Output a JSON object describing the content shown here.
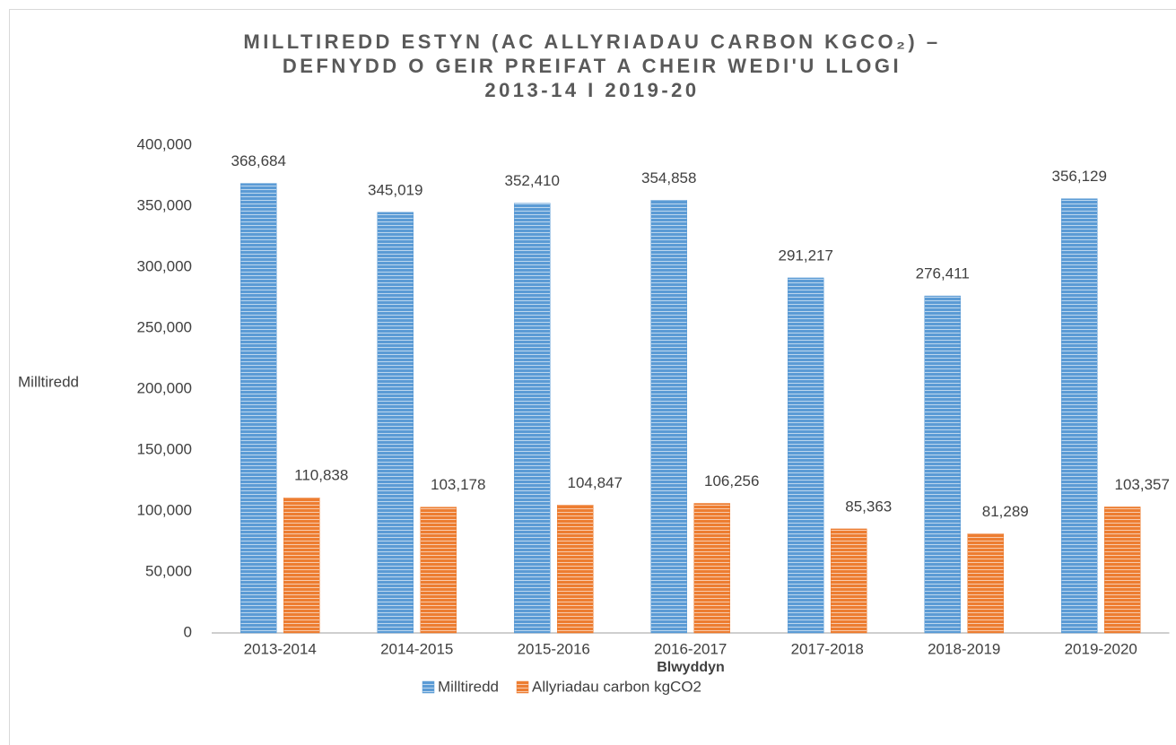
{
  "chart_data": {
    "type": "bar",
    "title": [
      "MILLTIREDD ESTYN (AC ALLYRIADAU CARBON KGCO₂) –",
      "DEFNYDD O GEIR PREIFAT A CHEIR WEDI'U LLOGI",
      "2013-14 I 2019-20"
    ],
    "y_label": "Milltiredd",
    "x_label": "Blwyddyn",
    "categories": [
      "2013-2014",
      "2014-2015",
      "2015-2016",
      "2016-2017",
      "2017-2018",
      "2018-2019",
      "2019-2020"
    ],
    "series": [
      {
        "name": "Milltiredd",
        "color": "#5b9bd5",
        "values": [
          368684,
          345019,
          352410,
          354858,
          291217,
          276411,
          356129
        ],
        "value_labels": [
          "368,684",
          "345,019",
          "352,410",
          "354,858",
          "291,217",
          "276,411",
          "356,129"
        ]
      },
      {
        "name": "Allyriadau carbon kgCO2",
        "color": "#ed7d31",
        "values": [
          110838,
          103178,
          104847,
          106256,
          85363,
          81289,
          103357
        ],
        "value_labels": [
          "110,838",
          "103,178",
          "104,847",
          "106,256",
          "85,363",
          "81,289",
          "103,357"
        ]
      }
    ],
    "ylim": [
      0,
      400000
    ],
    "yticks": [
      0,
      {
        "value": 50000,
        "label": "50,000"
      },
      {
        "value": 100000,
        "label": "100,000"
      },
      {
        "value": 150000,
        "label": "150,000"
      },
      {
        "value": 200000,
        "label": "200,000"
      },
      {
        "value": 250000,
        "label": "250,000"
      },
      {
        "value": 300000,
        "label": "300,000"
      },
      {
        "value": 350000,
        "label": "350,000"
      },
      {
        "value": 400000,
        "label": "400,000"
      }
    ],
    "grid": false,
    "legend": "bottom"
  }
}
